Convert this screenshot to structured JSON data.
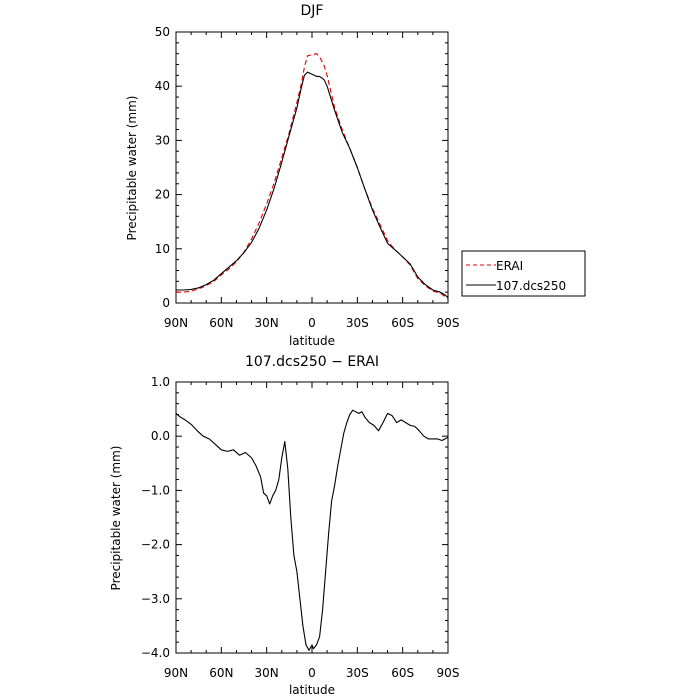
{
  "chart_data": [
    {
      "type": "line",
      "title": "DJF",
      "xlabel": "latitude",
      "ylabel": "Precipitable water  (mm)",
      "xlim": [
        -90,
        90
      ],
      "ylim": [
        0,
        50
      ],
      "x_tick_values": [
        -90,
        -60,
        -30,
        0,
        30,
        60,
        90
      ],
      "x_tick_labels": [
        "90N",
        "60N",
        "30N",
        "0",
        "30S",
        "60S",
        "90S"
      ],
      "y_tick_values": [
        0,
        10,
        20,
        30,
        40,
        50
      ],
      "y_tick_labels": [
        "0",
        "10",
        "20",
        "30",
        "40",
        "50"
      ],
      "legend_position": "right",
      "series": [
        {
          "name": "ERAI",
          "color": "#dd0000",
          "dash": true,
          "x": [
            -90,
            -85,
            -80,
            -75,
            -70,
            -65,
            -60,
            -55,
            -50,
            -45,
            -40,
            -35,
            -30,
            -25,
            -20,
            -15,
            -10,
            -7,
            -5,
            -3,
            0,
            3,
            5,
            8,
            10,
            15,
            20,
            25,
            30,
            35,
            40,
            45,
            50,
            55,
            60,
            65,
            70,
            75,
            80,
            85,
            88,
            90
          ],
          "y": [
            2.0,
            2.0,
            2.2,
            2.6,
            3.2,
            4.0,
            5.2,
            6.3,
            7.6,
            9.4,
            11.8,
            14.8,
            18.3,
            22.2,
            26.8,
            31.5,
            37.0,
            40.5,
            43.5,
            45.6,
            45.8,
            46.0,
            45.4,
            43.8,
            42.0,
            36.0,
            32.0,
            28.5,
            25.0,
            21.0,
            17.5,
            14.5,
            11.5,
            9.8,
            8.5,
            7.0,
            4.5,
            3.2,
            2.2,
            1.8,
            1.2,
            0.8
          ]
        },
        {
          "name": "107.dcs250",
          "color": "#000000",
          "dash": false,
          "x": [
            -90,
            -85,
            -80,
            -75,
            -70,
            -65,
            -60,
            -55,
            -50,
            -45,
            -40,
            -35,
            -30,
            -25,
            -20,
            -15,
            -10,
            -7,
            -5,
            -3,
            0,
            3,
            5,
            8,
            10,
            15,
            20,
            25,
            30,
            35,
            40,
            45,
            50,
            55,
            60,
            65,
            70,
            75,
            80,
            85,
            88,
            90
          ],
          "y": [
            2.4,
            2.4,
            2.5,
            2.8,
            3.4,
            4.2,
            5.4,
            6.6,
            7.8,
            9.3,
            11.2,
            13.8,
            17.2,
            21.2,
            26.0,
            31.0,
            36.0,
            39.8,
            42.0,
            42.6,
            42.2,
            41.8,
            41.8,
            41.2,
            40.0,
            35.5,
            31.5,
            28.5,
            25.0,
            21.0,
            17.2,
            14.0,
            11.0,
            9.8,
            8.5,
            7.2,
            4.8,
            3.4,
            2.4,
            2.0,
            1.5,
            1.0
          ]
        }
      ]
    },
    {
      "type": "line",
      "title": "107.dcs250 − ERAI",
      "xlabel": "latitude",
      "ylabel": "Precipitable water  (mm)",
      "xlim": [
        -90,
        90
      ],
      "ylim": [
        -4,
        1
      ],
      "x_tick_values": [
        -90,
        -60,
        -30,
        0,
        30,
        60,
        90
      ],
      "x_tick_labels": [
        "90N",
        "60N",
        "30N",
        "0",
        "30S",
        "60S",
        "90S"
      ],
      "y_tick_values": [
        1,
        0,
        -1,
        -2,
        -3,
        -4
      ],
      "y_tick_labels": [
        "1.0",
        "0.0",
        "−1.0",
        "−2.0",
        "−3.0",
        "−4.0"
      ],
      "series": [
        {
          "color": "#000000",
          "dash": false,
          "x": [
            -90,
            -87,
            -84,
            -80,
            -76,
            -72,
            -68,
            -64,
            -60,
            -56,
            -52,
            -48,
            -44,
            -40,
            -37,
            -34,
            -32,
            -30,
            -28,
            -26,
            -24,
            -22,
            -20,
            -18,
            -16,
            -14,
            -12,
            -10,
            -8,
            -6,
            -4,
            -2,
            0,
            1,
            3,
            5,
            7,
            9,
            11,
            13,
            15,
            17,
            19,
            21,
            23,
            25,
            27,
            29,
            31,
            33,
            35,
            38,
            41,
            44,
            47,
            50,
            53,
            56,
            59,
            62,
            65,
            68,
            71,
            74,
            77,
            80,
            83,
            86,
            88,
            90
          ],
          "y": [
            0.42,
            0.35,
            0.3,
            0.22,
            0.1,
            0.0,
            -0.05,
            -0.15,
            -0.25,
            -0.28,
            -0.25,
            -0.35,
            -0.3,
            -0.4,
            -0.55,
            -0.75,
            -1.05,
            -1.1,
            -1.25,
            -1.1,
            -1.0,
            -0.8,
            -0.4,
            -0.1,
            -0.6,
            -1.5,
            -2.2,
            -2.5,
            -3.0,
            -3.5,
            -3.85,
            -3.95,
            -3.85,
            -3.92,
            -3.85,
            -3.7,
            -3.2,
            -2.5,
            -1.8,
            -1.2,
            -0.9,
            -0.55,
            -0.25,
            0.05,
            0.25,
            0.4,
            0.48,
            0.45,
            0.42,
            0.45,
            0.35,
            0.25,
            0.2,
            0.1,
            0.25,
            0.42,
            0.38,
            0.25,
            0.3,
            0.25,
            0.2,
            0.18,
            0.1,
            0.0,
            -0.05,
            -0.05,
            -0.05,
            -0.08,
            -0.05,
            -0.02
          ]
        }
      ]
    }
  ]
}
